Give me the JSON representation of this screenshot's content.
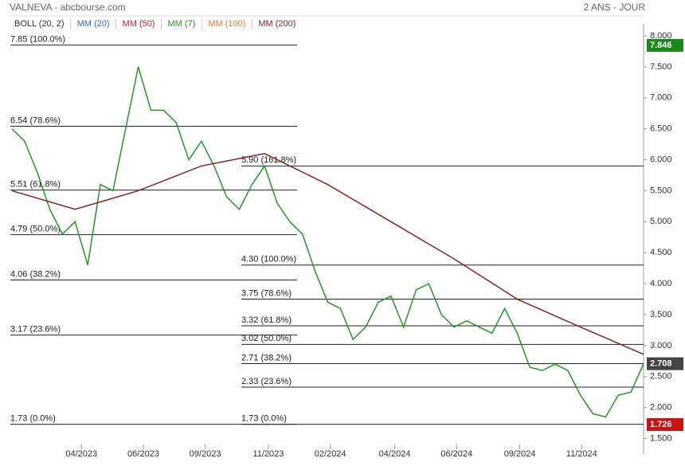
{
  "chart_data": {
    "type": "line",
    "title": "VALNEVA - abcbourse.com",
    "subtitle": "2 ANS - JOUR",
    "legend": [
      {
        "name": "BOLL (20, 2)",
        "color": "#333333"
      },
      {
        "name": "MM (20)",
        "color": "#3366dd"
      },
      {
        "name": "MM (50)",
        "color": "#cc2222"
      },
      {
        "name": "MM (7)",
        "color": "#229922"
      },
      {
        "name": "MM (100)",
        "color": "#ee7722"
      },
      {
        "name": "MM (200)",
        "color": "#882222"
      }
    ],
    "x": [
      0,
      10,
      20,
      30,
      40,
      50,
      60,
      70,
      80,
      90,
      100,
      110,
      120,
      130,
      140,
      150,
      160,
      170,
      180,
      190,
      200,
      210,
      220,
      230,
      240,
      250,
      260,
      270,
      280,
      290,
      300,
      310,
      320,
      330,
      340,
      350,
      360,
      370,
      380,
      390,
      400,
      410,
      420,
      430,
      440,
      450,
      460,
      470,
      480,
      490,
      500
    ],
    "series": [
      {
        "name": "MM (7)",
        "color": "#229922",
        "x": [
          0,
          10,
          20,
          30,
          40,
          50,
          60,
          70,
          80,
          90,
          100,
          110,
          120,
          130,
          140,
          150,
          160,
          170,
          180,
          190,
          200,
          210,
          220,
          230,
          240,
          250,
          260,
          270,
          280,
          290,
          300,
          310,
          320,
          330,
          340,
          350,
          360,
          370,
          380,
          390,
          400,
          410,
          420,
          430,
          440,
          450,
          460,
          470,
          480,
          490,
          500
        ],
        "values": [
          6.5,
          6.3,
          5.8,
          5.2,
          4.8,
          5.0,
          4.3,
          5.6,
          5.5,
          6.5,
          7.5,
          6.8,
          6.8,
          6.6,
          6.0,
          6.3,
          5.9,
          5.4,
          5.2,
          5.6,
          5.9,
          5.3,
          5.0,
          4.8,
          4.2,
          3.7,
          3.6,
          3.1,
          3.3,
          3.7,
          3.8,
          3.3,
          3.9,
          4.0,
          3.5,
          3.3,
          3.4,
          3.3,
          3.2,
          3.6,
          3.2,
          2.65,
          2.6,
          2.7,
          2.6,
          2.2,
          1.9,
          1.85,
          2.2,
          2.25,
          2.708
        ]
      },
      {
        "name": "MM (200)",
        "color": "#882222",
        "x": [
          0,
          50,
          100,
          150,
          200,
          250,
          300,
          350,
          400,
          450,
          500
        ],
        "values": [
          5.5,
          5.2,
          5.5,
          5.9,
          6.1,
          5.6,
          5.0,
          4.4,
          3.75,
          3.3,
          2.86
        ]
      }
    ],
    "fib_left": [
      {
        "value": 7.85,
        "label": "7.85  (100.0%)"
      },
      {
        "value": 6.54,
        "label": "6.54  (78.6%)"
      },
      {
        "value": 5.51,
        "label": "5.51  (61.8%)"
      },
      {
        "value": 4.79,
        "label": "4.79  (50.0%)"
      },
      {
        "value": 4.06,
        "label": "4.06  (38.2%)"
      },
      {
        "value": 3.17,
        "label": "3.17  (23.6%)"
      },
      {
        "value": 1.73,
        "label": "1.73  (0.0%)"
      }
    ],
    "fib_right": [
      {
        "value": 5.9,
        "label": "5.90  (161.8%)"
      },
      {
        "value": 4.3,
        "label": "4.30  (100.0%)"
      },
      {
        "value": 3.75,
        "label": "3.75  (78.6%)"
      },
      {
        "value": 3.32,
        "label": "3.32  (61.8%)"
      },
      {
        "value": 3.02,
        "label": "3.02  (50.0%)"
      },
      {
        "value": 2.71,
        "label": "2.71  (38.2%)"
      },
      {
        "value": 2.33,
        "label": "2.33  (23.6%)"
      },
      {
        "value": 1.73,
        "label": "1.73  (0.0%)"
      }
    ],
    "price_markers": [
      {
        "value": 7.846,
        "color": "#1a8a1a"
      },
      {
        "value": 2.708,
        "color": "#444444"
      },
      {
        "value": 1.726,
        "color": "#cc1111"
      }
    ],
    "xlim": [
      0,
      500
    ],
    "ylim": [
      1.25,
      8.45
    ],
    "xticks": [
      {
        "value": 55,
        "label": "04/2023"
      },
      {
        "value": 104,
        "label": "06/2023"
      },
      {
        "value": 153,
        "label": "09/2023"
      },
      {
        "value": 203,
        "label": "11/2023"
      },
      {
        "value": 252,
        "label": "02/2024"
      },
      {
        "value": 303,
        "label": "04/2024"
      },
      {
        "value": 352,
        "label": "06/2024"
      },
      {
        "value": 402,
        "label": "09/2024"
      },
      {
        "value": 451,
        "label": "11/2024"
      }
    ],
    "yticks": [
      {
        "value": 1.5,
        "label": "1.500"
      },
      {
        "value": 2,
        "label": "2.000"
      },
      {
        "value": 2.5,
        "label": "2.500"
      },
      {
        "value": 3,
        "label": "3.000"
      },
      {
        "value": 3.5,
        "label": "3.500"
      },
      {
        "value": 4,
        "label": "4.000"
      },
      {
        "value": 4.5,
        "label": "4.500"
      },
      {
        "value": 5,
        "label": "5.000"
      },
      {
        "value": 5.5,
        "label": "5.500"
      },
      {
        "value": 6,
        "label": "6.000"
      },
      {
        "value": 6.5,
        "label": "6.500"
      },
      {
        "value": 7,
        "label": "7.000"
      },
      {
        "value": 7.5,
        "label": "7.500"
      },
      {
        "value": 8,
        "label": "8.000"
      }
    ]
  }
}
